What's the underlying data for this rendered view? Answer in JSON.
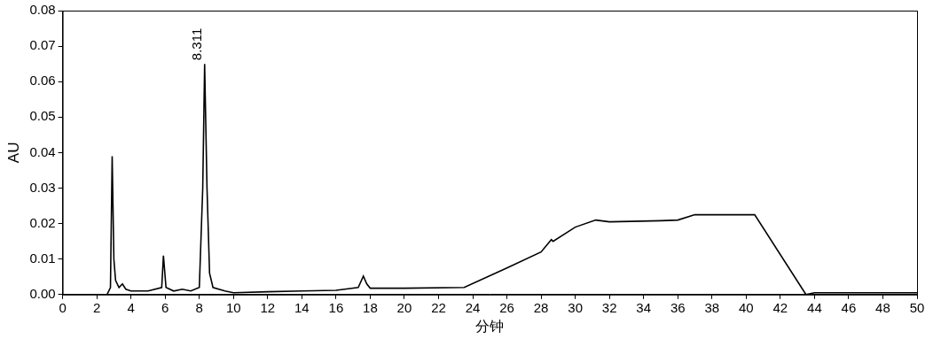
{
  "chart_data": {
    "type": "line",
    "x_label": "分钟",
    "y_label": "AU",
    "color": "#000000",
    "grid": false,
    "xlim": [
      0,
      50
    ],
    "ylim": [
      0,
      0.08
    ],
    "xticks": [
      0,
      2,
      4,
      6,
      8,
      10,
      12,
      14,
      16,
      18,
      20,
      22,
      24,
      26,
      28,
      30,
      32,
      34,
      36,
      38,
      40,
      42,
      44,
      46,
      48,
      50
    ],
    "yticks": [
      {
        "value": 0,
        "label": "0.00"
      },
      {
        "value": 0.01,
        "label": "0.01"
      },
      {
        "value": 0.02,
        "label": "0.02"
      },
      {
        "value": 0.03,
        "label": "0.03"
      },
      {
        "value": 0.04,
        "label": "0.04"
      },
      {
        "value": 0.05,
        "label": "0.05"
      },
      {
        "value": 0.06,
        "label": "0.06"
      },
      {
        "value": 0.07,
        "label": "0.07"
      },
      {
        "value": 0.08,
        "label": "0.08"
      }
    ],
    "x": [
      2.6,
      2.8,
      2.9,
      3.0,
      3.1,
      3.3,
      3.5,
      3.7,
      4.0,
      5.0,
      5.8,
      5.9,
      6.05,
      6.5,
      7.0,
      7.5,
      8.0,
      8.2,
      8.311,
      8.45,
      8.6,
      8.8,
      9.5,
      10,
      12,
      14,
      16,
      17.3,
      17.6,
      17.8,
      18,
      20,
      23.5,
      26,
      28,
      28.6,
      28.7,
      30,
      31.2,
      32,
      35,
      36,
      37,
      40.5,
      43.5,
      44,
      50
    ],
    "values": [
      0,
      0.002,
      0.039,
      0.01,
      0.004,
      0.002,
      0.003,
      0.0015,
      0.001,
      0.001,
      0.002,
      0.011,
      0.002,
      0.001,
      0.0015,
      0.001,
      0.002,
      0.03,
      0.065,
      0.03,
      0.006,
      0.002,
      0.001,
      0.0005,
      0.0008,
      0.001,
      0.0012,
      0.002,
      0.0052,
      0.003,
      0.0018,
      0.0018,
      0.002,
      0.0075,
      0.012,
      0.0155,
      0.015,
      0.019,
      0.021,
      0.0205,
      0.0208,
      0.021,
      0.0225,
      0.0225,
      0,
      0.0005,
      0.0005
    ],
    "annotations": [
      {
        "text": "8.311",
        "x": 8.311,
        "y": 0.065
      }
    ]
  }
}
